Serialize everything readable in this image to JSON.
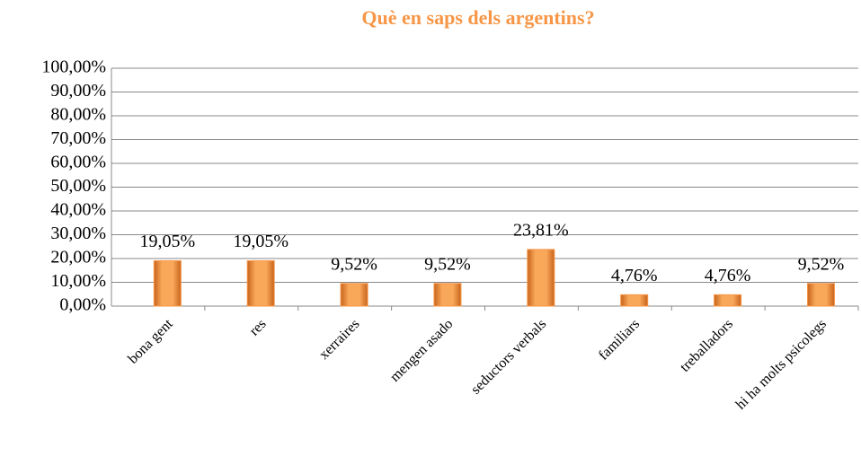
{
  "chart_data": {
    "type": "bar",
    "title": "Què en saps dels argentins?",
    "categories": [
      "bona gent",
      "res",
      "xerraires",
      "mengen asado",
      "seductors verbals",
      "familiars",
      "treballadors",
      "hi ha molts psicolegs"
    ],
    "values": [
      19.05,
      19.05,
      9.52,
      9.52,
      23.81,
      4.76,
      4.76,
      9.52
    ],
    "value_labels": [
      "19,05%",
      "19,05%",
      "9,52%",
      "9,52%",
      "23,81%",
      "4,76%",
      "4,76%",
      "9,52%"
    ],
    "color": "#f79646",
    "ylim": [
      0,
      100
    ],
    "yticks": [
      {
        "value": 0,
        "label": "0,00%"
      },
      {
        "value": 10,
        "label": "10,00%"
      },
      {
        "value": 20,
        "label": "20,00%"
      },
      {
        "value": 30,
        "label": "30,00%"
      },
      {
        "value": 40,
        "label": "40,00%"
      },
      {
        "value": 50,
        "label": "50,00%"
      },
      {
        "value": 60,
        "label": "60,00%"
      },
      {
        "value": 70,
        "label": "70,00%"
      },
      {
        "value": 80,
        "label": "80,00%"
      },
      {
        "value": 90,
        "label": "90,00%"
      },
      {
        "value": 100,
        "label": "100,00%"
      }
    ],
    "grid": true
  }
}
